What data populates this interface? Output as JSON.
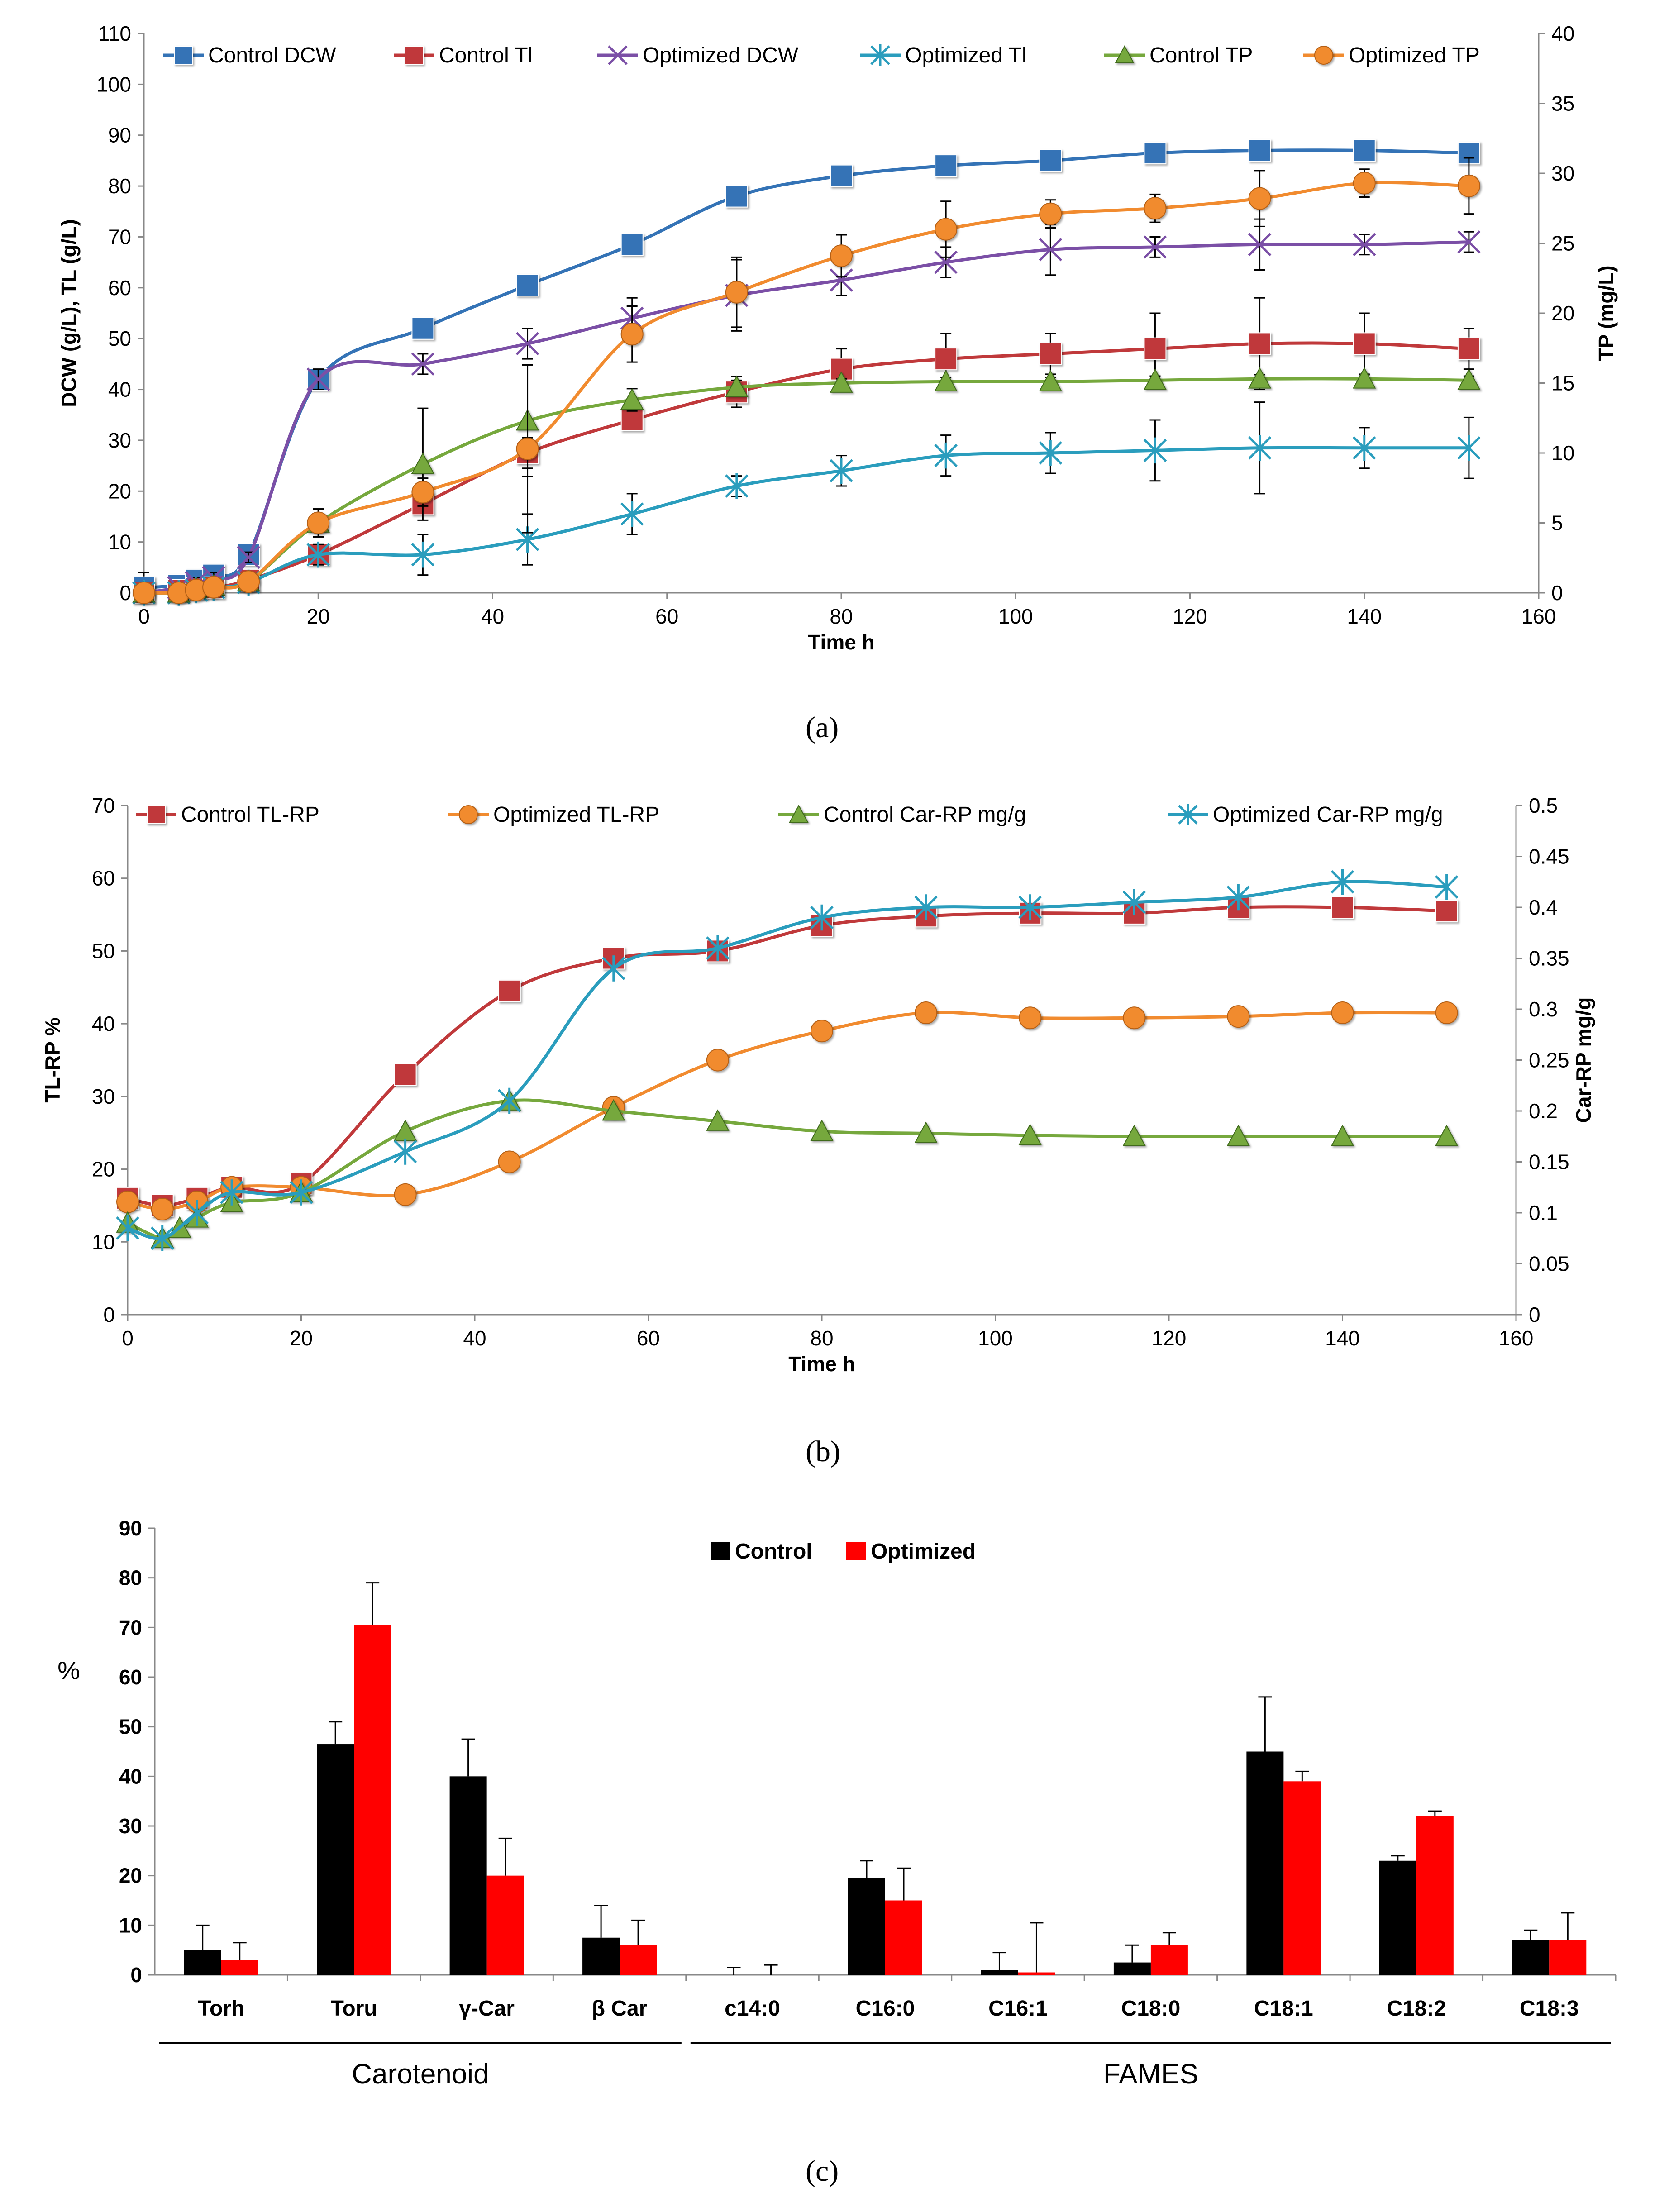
{
  "panel_labels": {
    "a": "(a)",
    "b": "(b)",
    "c": "(c)"
  },
  "chart_data": [
    {
      "id": "a",
      "type": "line",
      "xlabel": "Time h",
      "ylabel": "DCW (g/L), TL (g/L)",
      "ylabel_right": "TP (mg/L)",
      "xlim": [
        0,
        160
      ],
      "xticks": [
        0,
        20,
        40,
        60,
        80,
        100,
        120,
        140,
        160
      ],
      "ylim": [
        0,
        110
      ],
      "yticks": [
        0,
        10,
        20,
        30,
        40,
        50,
        60,
        70,
        80,
        90,
        100,
        110
      ],
      "ylim_right": [
        0,
        40
      ],
      "yticks_right": [
        0,
        5,
        10,
        15,
        20,
        25,
        30,
        35,
        40
      ],
      "series": [
        {
          "name": "Control DCW",
          "color": "#3473b6",
          "marker": "square",
          "axis": "left",
          "x": [
            0,
            4,
            6,
            8,
            12,
            20,
            32,
            44,
            56,
            68,
            80,
            92,
            104,
            116,
            128,
            140,
            152
          ],
          "values": [
            1,
            1.5,
            2.5,
            3.5,
            7.5,
            42,
            52,
            60.5,
            68.5,
            78,
            82,
            84,
            85,
            86.5,
            87,
            87,
            86.5
          ],
          "err": [
            3,
            2,
            2,
            2,
            2,
            2,
            2,
            1,
            1,
            1,
            1,
            1,
            1,
            1,
            1,
            1,
            1
          ]
        },
        {
          "name": "Control Tl",
          "color": "#c0393b",
          "marker": "square",
          "axis": "left",
          "x": [
            0,
            4,
            6,
            8,
            12,
            20,
            32,
            44,
            56,
            68,
            80,
            92,
            104,
            116,
            128,
            140,
            152
          ],
          "values": [
            0,
            0.5,
            0.8,
            1,
            2.5,
            7.5,
            17.5,
            27.5,
            34,
            39.5,
            44,
            46,
            47,
            48,
            49,
            49,
            48
          ],
          "err": [
            1,
            1,
            1,
            1,
            1,
            2,
            2,
            3,
            2,
            3,
            4,
            5,
            4,
            7,
            9,
            6,
            4
          ]
        },
        {
          "name": "Optimized DCW",
          "color": "#7b4fa6",
          "marker": "x",
          "axis": "left",
          "x": [
            0,
            4,
            6,
            8,
            12,
            20,
            32,
            44,
            56,
            68,
            80,
            92,
            104,
            116,
            128,
            140,
            152
          ],
          "values": [
            0,
            1,
            2,
            3,
            7,
            42,
            45,
            49,
            54,
            58.5,
            61.5,
            65,
            67.5,
            68,
            68.5,
            68.5,
            69
          ],
          "err": [
            1,
            1,
            1,
            1,
            1,
            2,
            2,
            3,
            4,
            7,
            3,
            3,
            5,
            2,
            5,
            2,
            2
          ]
        },
        {
          "name": "Optimized Tl",
          "color": "#2a9dbd",
          "marker": "asterisk",
          "axis": "left",
          "x": [
            0,
            4,
            6,
            8,
            12,
            20,
            32,
            44,
            56,
            68,
            80,
            92,
            104,
            116,
            128,
            140,
            152
          ],
          "values": [
            0,
            0,
            0.5,
            1,
            2,
            7.5,
            7.5,
            10.5,
            15.5,
            21,
            24,
            27,
            27.5,
            28,
            28.5,
            28.5,
            28.5
          ],
          "err": [
            1,
            1,
            1,
            1,
            1,
            2,
            4,
            5,
            4,
            2,
            3,
            4,
            4,
            6,
            9,
            4,
            6
          ]
        },
        {
          "name": "Control TP",
          "color": "#76a83d",
          "marker": "triangle",
          "axis": "right",
          "x": [
            0,
            4,
            6,
            8,
            12,
            20,
            32,
            44,
            56,
            68,
            80,
            92,
            104,
            116,
            128,
            140,
            152
          ],
          "values": [
            0,
            0,
            0.3,
            0.5,
            0.8,
            5,
            9.2,
            12.3,
            13.8,
            14.7,
            15,
            15.1,
            15.1,
            15.2,
            15.3,
            15.3,
            15.2
          ],
          "err": [
            0.3,
            0.3,
            0.3,
            0.3,
            0.3,
            1,
            4,
            4,
            0.8,
            0.5,
            0.3,
            0.3,
            0.3,
            0.3,
            0.3,
            0.3,
            0.3
          ]
        },
        {
          "name": "Optimized TP",
          "color": "#f18b2f",
          "marker": "circle",
          "axis": "right",
          "x": [
            0,
            4,
            6,
            8,
            12,
            20,
            32,
            44,
            56,
            68,
            80,
            92,
            104,
            116,
            128,
            140,
            152
          ],
          "values": [
            0,
            0,
            0.2,
            0.4,
            0.8,
            5,
            7.2,
            10.3,
            18.5,
            21.5,
            24.1,
            26,
            27.1,
            27.5,
            28.2,
            29.3,
            29.1
          ],
          "err": [
            0.3,
            0.3,
            0.3,
            0.3,
            0.3,
            1,
            1,
            6,
            2,
            2.5,
            1.5,
            2,
            1,
            1,
            2,
            1,
            2
          ]
        }
      ]
    },
    {
      "id": "b",
      "type": "line",
      "xlabel": "Time h",
      "ylabel": "TL-RP %",
      "ylabel_right": "Car-RP mg/g",
      "xlim": [
        0,
        160
      ],
      "xticks": [
        0,
        20,
        40,
        60,
        80,
        100,
        120,
        140,
        160
      ],
      "ylim": [
        0,
        70
      ],
      "yticks": [
        0,
        10,
        20,
        30,
        40,
        50,
        60,
        70
      ],
      "ylim_right": [
        0,
        0.5
      ],
      "yticks_right": [
        "0",
        "0.05",
        "0.1",
        "0.15",
        "0.2",
        "0.25",
        "0.3",
        "0.35",
        "0.4",
        "0.45",
        "0.5"
      ],
      "series": [
        {
          "name": "Control TL-RP",
          "color": "#c0393b",
          "marker": "square",
          "axis": "left",
          "x": [
            0,
            4,
            8,
            12,
            20,
            32,
            44,
            56,
            68,
            80,
            92,
            104,
            116,
            128,
            140,
            152
          ],
          "values": [
            16,
            15,
            16,
            17.5,
            18,
            33,
            44.5,
            49,
            50,
            53.5,
            54.8,
            55.2,
            55.2,
            56,
            56,
            55.5
          ]
        },
        {
          "name": "Optimized TL-RP",
          "color": "#f18b2f",
          "marker": "circle",
          "axis": "left",
          "x": [
            0,
            4,
            8,
            12,
            20,
            32,
            44,
            56,
            68,
            80,
            92,
            104,
            116,
            128,
            140,
            152
          ],
          "values": [
            15.5,
            14.5,
            15.5,
            17.5,
            17.5,
            16.5,
            21,
            28.5,
            35,
            39,
            41.5,
            40.8,
            40.8,
            41,
            41.5,
            41.5
          ]
        },
        {
          "name": "Control Car-RP mg/g",
          "color": "#76a83d",
          "marker": "triangle",
          "axis": "right",
          "x": [
            0,
            4,
            6,
            8,
            12,
            20,
            32,
            44,
            56,
            68,
            80,
            92,
            104,
            116,
            128,
            140,
            152
          ],
          "values": [
            0.09,
            0.075,
            0.085,
            0.095,
            0.11,
            0.12,
            0.18,
            0.21,
            0.2,
            0.19,
            0.18,
            0.178,
            0.176,
            0.175,
            0.175,
            0.175,
            0.175
          ]
        },
        {
          "name": "Optimized Car-RP mg/g",
          "color": "#2a9dbd",
          "marker": "asterisk",
          "axis": "right",
          "x": [
            0,
            4,
            8,
            12,
            20,
            32,
            44,
            56,
            68,
            80,
            92,
            104,
            116,
            128,
            140,
            152
          ],
          "values": [
            0.085,
            0.075,
            0.1,
            0.12,
            0.12,
            0.16,
            0.21,
            0.34,
            0.36,
            0.39,
            0.4,
            0.4,
            0.405,
            0.41,
            0.425,
            0.42
          ]
        }
      ]
    },
    {
      "id": "c",
      "type": "bar",
      "ylabel": "%",
      "ylim": [
        0,
        90
      ],
      "yticks": [
        0,
        10,
        20,
        30,
        40,
        50,
        60,
        70,
        80,
        90
      ],
      "categories": [
        "Torh",
        "Toru",
        "γ-Car",
        "β Car",
        "c14:0",
        "C16:0",
        "C16:1",
        "C18:0",
        "C18:1",
        "C18:2",
        "C18:3"
      ],
      "groups": [
        {
          "label": "Carotenoid",
          "from": 0,
          "to": 3
        },
        {
          "label": "FAMES",
          "from": 4,
          "to": 10
        }
      ],
      "series": [
        {
          "name": "Control",
          "color": "#000000",
          "values": [
            5,
            46.5,
            40,
            7.5,
            0,
            19.5,
            1,
            2.5,
            45,
            23,
            7
          ],
          "err": [
            5,
            4.5,
            7.5,
            6.5,
            1.5,
            3.5,
            3.5,
            3.5,
            11,
            1,
            2
          ]
        },
        {
          "name": "Optimized",
          "color": "#ff0000",
          "values": [
            3,
            70.5,
            20,
            6,
            0,
            15,
            0.5,
            6,
            39,
            32,
            7
          ],
          "err": [
            3.5,
            8.5,
            7.5,
            5,
            2,
            6.5,
            10,
            2.5,
            2,
            1,
            5.5
          ]
        }
      ]
    }
  ]
}
